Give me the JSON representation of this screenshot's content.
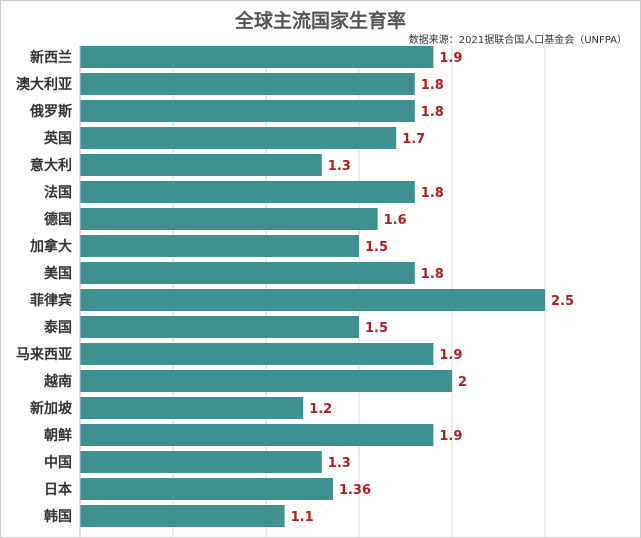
{
  "chart_data": {
    "type": "bar",
    "orientation": "horizontal",
    "title": "全球主流国家生育率",
    "source": "数据来源：2021据联合国人口基金会（UNFPA）",
    "categories": [
      "新西兰",
      "澳大利亚",
      "俄罗斯",
      "英国",
      "意大利",
      "法国",
      "德国",
      "加拿大",
      "美国",
      "菲律宾",
      "泰国",
      "马来西亚",
      "越南",
      "新加坡",
      "朝鲜",
      "中国",
      "日本",
      "韩国"
    ],
    "values": [
      1.9,
      1.8,
      1.8,
      1.7,
      1.3,
      1.8,
      1.6,
      1.5,
      1.8,
      2.5,
      1.5,
      1.9,
      2,
      1.2,
      1.9,
      1.3,
      1.36,
      1.1
    ],
    "value_labels": [
      "1.9",
      "1.8",
      "1.8",
      "1.7",
      "1.3",
      "1.8",
      "1.6",
      "1.5",
      "1.8",
      "2.5",
      "1.5",
      "1.9",
      "2",
      "1.2",
      "1.9",
      "1.3",
      "1.36",
      "1.1"
    ],
    "xlim": [
      0,
      2.5
    ],
    "grid": true,
    "bar_color": "#3e9091",
    "label_color": "#b71c1c",
    "grid_color": "#d9d9d9"
  }
}
